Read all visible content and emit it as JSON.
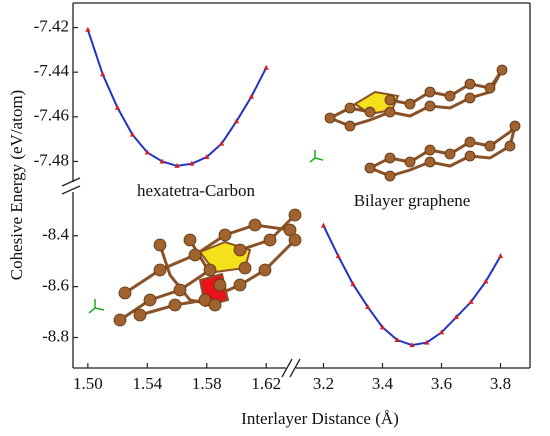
{
  "chart_data": [
    {
      "type": "line",
      "xlabel": "Interlayer Distance (Å)",
      "ylabel": "Cohesive Energy (eV/atom)",
      "x": [
        1.5,
        1.51,
        1.52,
        1.53,
        1.54,
        1.55,
        1.56,
        1.57,
        1.58,
        1.59,
        1.6,
        1.61,
        1.62
      ],
      "series": [
        {
          "name": "hexatetra-Carbon",
          "color": "#2233c4",
          "marker_color": "#d62020",
          "values": [
            -7.421,
            -7.441,
            -7.456,
            -7.468,
            -7.476,
            -7.48,
            -7.482,
            -7.481,
            -7.478,
            -7.472,
            -7.462,
            -7.451,
            -7.438
          ]
        }
      ],
      "xlim": [
        1.49,
        1.636
      ],
      "xticks": [
        {
          "value": 1.5,
          "label": "1.50"
        },
        1.54,
        1.58,
        1.62
      ],
      "ylim": [
        -7.491,
        -7.409
      ],
      "yticks": [
        -7.42,
        -7.44,
        -7.46,
        -7.48
      ]
    },
    {
      "type": "line",
      "x": [
        3.2,
        3.25,
        3.3,
        3.35,
        3.4,
        3.45,
        3.5,
        3.55,
        3.6,
        3.65,
        3.7,
        3.75,
        3.8
      ],
      "series": [
        {
          "name": "Bilayer graphene",
          "color": "#2233c4",
          "marker_color": "#d62020",
          "values": [
            -8.36,
            -8.48,
            -8.59,
            -8.68,
            -8.76,
            -8.81,
            -8.83,
            -8.82,
            -8.78,
            -8.72,
            -8.66,
            -8.58,
            -8.48
          ]
        }
      ],
      "xlim": [
        3.1,
        3.9
      ],
      "xticks": [
        3.2,
        3.4,
        3.6,
        3.8
      ],
      "ylim": [
        -8.92,
        -8.22
      ],
      "yticks": [
        -8.4,
        -8.6,
        -8.8
      ]
    }
  ]
}
